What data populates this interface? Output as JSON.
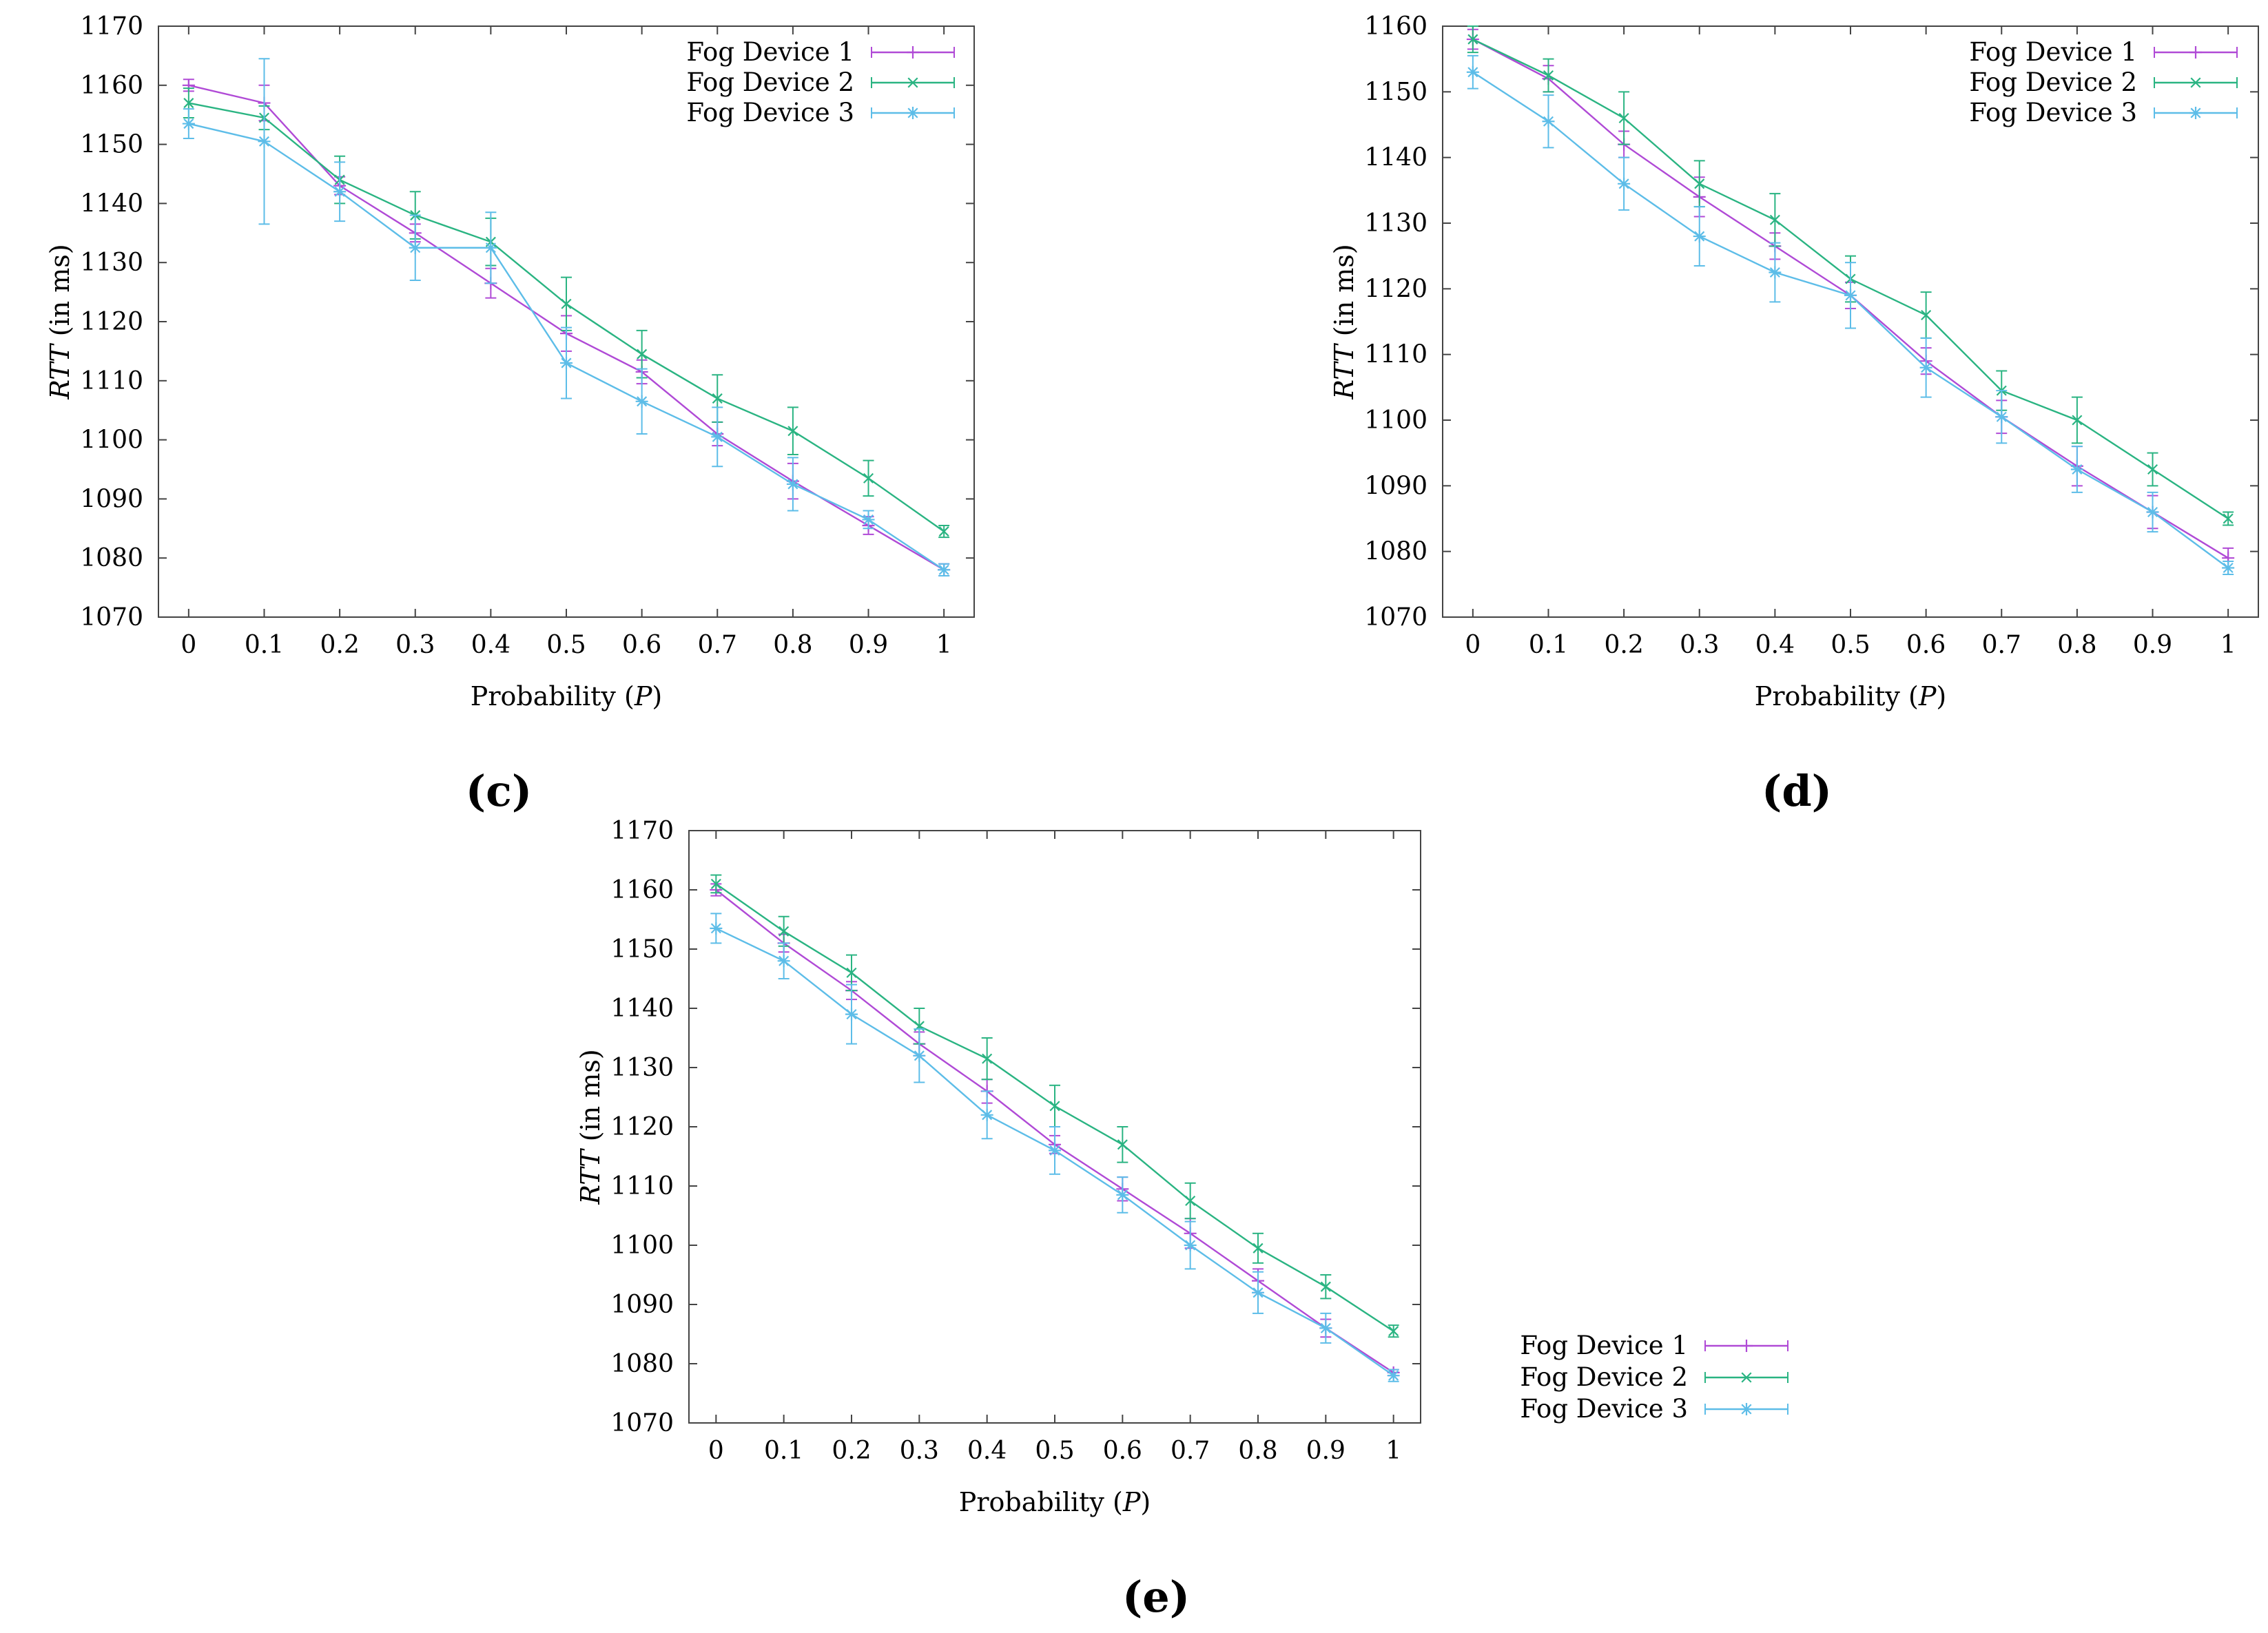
{
  "figure": {
    "panels": [
      "(c)",
      "(d)",
      "(e)"
    ]
  },
  "chart_data": [
    {
      "panel": "(c)",
      "type": "line",
      "xlabel": "Probability (P)",
      "ylabel": "RTT (in ms)",
      "x": [
        0,
        0.1,
        0.2,
        0.3,
        0.4,
        0.5,
        0.6,
        0.7,
        0.8,
        0.9,
        1
      ],
      "x_tick_labels": [
        "0",
        "0.1",
        "0.2",
        "0.3",
        "0.4",
        "0.5",
        "0.6",
        "0.7",
        "0.8",
        "0.9",
        "1"
      ],
      "ylim": [
        1070,
        1170
      ],
      "y_ticks": [
        1070,
        1080,
        1090,
        1100,
        1110,
        1120,
        1130,
        1140,
        1150,
        1160,
        1170
      ],
      "legend_position": "top-right",
      "series": [
        {
          "name": "Fog Device 1",
          "marker": "+",
          "color": "#b04ad6",
          "values": [
            1160,
            1157,
            1143,
            1135,
            1126.5,
            1118,
            1111.5,
            1101,
            1093,
            1085.5,
            1078
          ],
          "errors": [
            1,
            3,
            1.5,
            1.5,
            2.5,
            3,
            2,
            2,
            3,
            1.5,
            1
          ]
        },
        {
          "name": "Fog Device 2",
          "marker": "x",
          "color": "#2ab482",
          "values": [
            1157,
            1154.5,
            1144,
            1138,
            1133.5,
            1123,
            1114.5,
            1107,
            1101.5,
            1093.5,
            1084.5
          ],
          "errors": [
            2.5,
            2,
            4,
            4,
            4,
            4.5,
            4,
            4,
            4,
            3,
            1
          ]
        },
        {
          "name": "Fog Device 3",
          "marker": "*",
          "color": "#5dbde8",
          "values": [
            1153.5,
            1150.5,
            1142,
            1132.5,
            1132.5,
            1113,
            1106.5,
            1100.5,
            1092.5,
            1086.5,
            1078
          ],
          "errors": [
            2.5,
            14,
            5,
            5.5,
            6,
            6,
            5.5,
            5,
            4.5,
            1.5,
            1
          ]
        }
      ]
    },
    {
      "panel": "(d)",
      "type": "line",
      "xlabel": "Probability (P)",
      "ylabel": "RTT (in ms)",
      "x": [
        0,
        0.1,
        0.2,
        0.3,
        0.4,
        0.5,
        0.6,
        0.7,
        0.8,
        0.9,
        1
      ],
      "x_tick_labels": [
        "0",
        "0.1",
        "0.2",
        "0.3",
        "0.4",
        "0.5",
        "0.6",
        "0.7",
        "0.8",
        "0.9",
        "1"
      ],
      "ylim": [
        1070,
        1160
      ],
      "y_ticks": [
        1070,
        1080,
        1090,
        1100,
        1110,
        1120,
        1130,
        1140,
        1150,
        1160
      ],
      "legend_position": "top-right",
      "series": [
        {
          "name": "Fog Device 1",
          "marker": "+",
          "color": "#b04ad6",
          "values": [
            1158,
            1152,
            1142,
            1134,
            1126.5,
            1119,
            1109,
            1100.5,
            1093,
            1086,
            1079
          ],
          "errors": [
            1.5,
            2,
            2,
            3,
            2,
            2,
            2,
            2.5,
            3,
            2.5,
            1.5
          ]
        },
        {
          "name": "Fog Device 2",
          "marker": "x",
          "color": "#2ab482",
          "values": [
            1158,
            1152.5,
            1146,
            1136,
            1130.5,
            1121.5,
            1116,
            1104.5,
            1100,
            1092.5,
            1085
          ],
          "errors": [
            2,
            2.5,
            4,
            3.5,
            4,
            3.5,
            3.5,
            3,
            3.5,
            2.5,
            1
          ]
        },
        {
          "name": "Fog Device 3",
          "marker": "*",
          "color": "#5dbde8",
          "values": [
            1153,
            1145.5,
            1136,
            1128,
            1122.5,
            1119,
            1108,
            1100.5,
            1092.5,
            1086,
            1077.5
          ],
          "errors": [
            2.5,
            4,
            4,
            4.5,
            4.5,
            5,
            4.5,
            4,
            3.5,
            3,
            1
          ]
        }
      ]
    },
    {
      "panel": "(e)",
      "type": "line",
      "xlabel": "Probability (P)",
      "ylabel": "RTT (in ms)",
      "x": [
        0,
        0.1,
        0.2,
        0.3,
        0.4,
        0.5,
        0.6,
        0.7,
        0.8,
        0.9,
        1
      ],
      "x_tick_labels": [
        "0",
        "0.1",
        "0.2",
        "0.3",
        "0.4",
        "0.5",
        "0.6",
        "0.7",
        "0.8",
        "0.9",
        "1"
      ],
      "ylim": [
        1070,
        1170
      ],
      "y_ticks": [
        1070,
        1080,
        1090,
        1100,
        1110,
        1120,
        1130,
        1140,
        1150,
        1160,
        1170
      ],
      "legend_position": "outside-right",
      "series": [
        {
          "name": "Fog Device 1",
          "marker": "+",
          "color": "#b04ad6",
          "values": [
            1160,
            1151,
            1143,
            1134,
            1126,
            1117,
            1109.5,
            1102,
            1094,
            1086,
            1078.5
          ],
          "errors": [
            1,
            1.5,
            1.5,
            2,
            2,
            1.5,
            2,
            2.5,
            2,
            1.5,
            0.5
          ]
        },
        {
          "name": "Fog Device 2",
          "marker": "x",
          "color": "#2ab482",
          "values": [
            1161,
            1153,
            1146,
            1137,
            1131.5,
            1123.5,
            1117,
            1107.5,
            1099.5,
            1093,
            1085.5
          ],
          "errors": [
            1.5,
            2.5,
            3,
            3,
            3.5,
            3.5,
            3,
            3,
            2.5,
            2,
            1
          ]
        },
        {
          "name": "Fog Device 3",
          "marker": "*",
          "color": "#5dbde8",
          "values": [
            1153.5,
            1148,
            1139,
            1132,
            1122,
            1116,
            1108.5,
            1100,
            1092,
            1086,
            1078
          ],
          "errors": [
            2.5,
            3,
            5,
            4.5,
            4,
            4,
            3,
            4,
            3.5,
            2.5,
            1
          ]
        }
      ]
    }
  ]
}
